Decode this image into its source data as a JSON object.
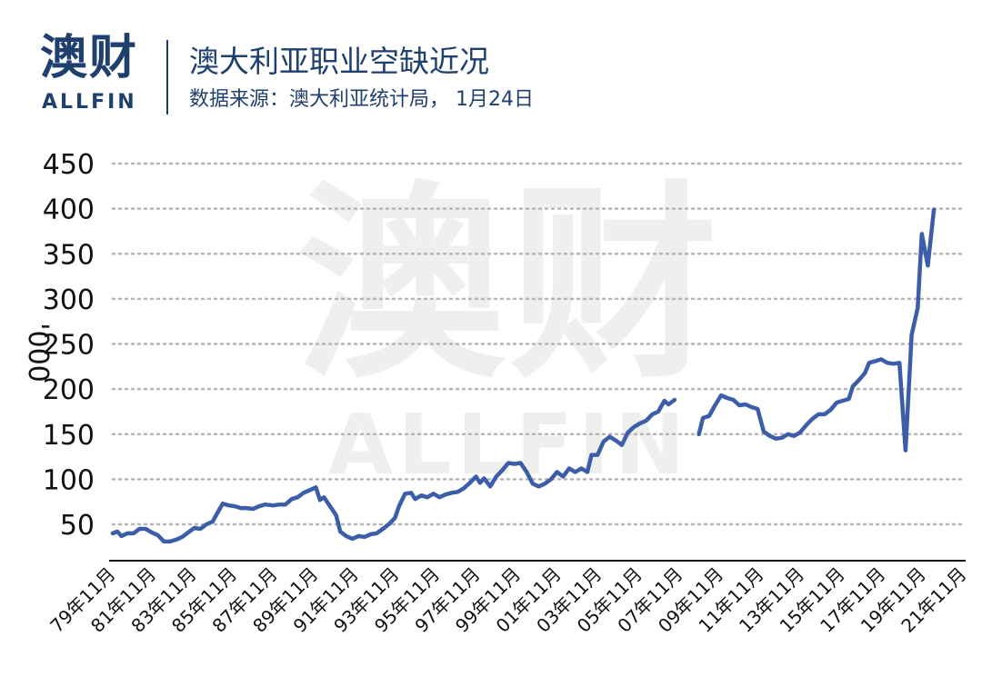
{
  "logo": {
    "cn": "澳财",
    "en": "ALLFIN"
  },
  "watermark": {
    "cn": "澳财",
    "en": "ALLFIN"
  },
  "header": {
    "title": "澳大利亚职业空缺近况",
    "subtitle": "数据来源：澳大利亚统计局， 1月24日"
  },
  "colors": {
    "line": "#3c5ea8",
    "grid": "#b5b5b5",
    "axis": "#111111",
    "brand": "#1f3f6e"
  },
  "chart_data": {
    "type": "line",
    "title": "澳大利亚职业空缺近况",
    "xlabel": "",
    "ylabel": "'000",
    "ylim": [
      0,
      450
    ],
    "yticks": [
      50,
      100,
      150,
      200,
      250,
      300,
      350,
      400,
      450
    ],
    "grid": "horizontal-dotted",
    "x_range": [
      1979.875,
      2021.875
    ],
    "xtick_labels": [
      "79年11月",
      "81年11月",
      "83年11月",
      "85年11月",
      "87年11月",
      "89年11月",
      "91年11月",
      "93年11月",
      "95年11月",
      "97年11月",
      "99年11月",
      "01年11月",
      "03年11月",
      "05年11月",
      "07年11月",
      "09年11月",
      "11年11月",
      "13年11月",
      "15年11月",
      "17年11月",
      "19年11月",
      "21年11月"
    ],
    "xtick_values": [
      1979.875,
      1981.875,
      1983.875,
      1985.875,
      1987.875,
      1989.875,
      1991.875,
      1993.875,
      1995.875,
      1997.875,
      1999.875,
      2001.875,
      2003.875,
      2005.875,
      2007.875,
      2009.875,
      2011.875,
      2013.875,
      2015.875,
      2017.875,
      2019.875,
      2021.875
    ],
    "series": [
      {
        "segments": [
          [
            [
              1979.875,
              40
            ],
            [
              1980.1,
              42
            ],
            [
              1980.3,
              37
            ],
            [
              1980.6,
              40
            ],
            [
              1980.9,
              40
            ],
            [
              1981.2,
              45
            ],
            [
              1981.5,
              45
            ],
            [
              1981.8,
              41
            ],
            [
              1982.1,
              38
            ],
            [
              1982.4,
              31
            ],
            [
              1982.7,
              31
            ],
            [
              1983.0,
              33
            ],
            [
              1983.3,
              36
            ],
            [
              1983.6,
              41
            ],
            [
              1983.9,
              46
            ],
            [
              1984.2,
              45
            ],
            [
              1984.5,
              50
            ],
            [
              1984.8,
              53
            ],
            [
              1985.1,
              65
            ],
            [
              1985.3,
              73
            ],
            [
              1985.6,
              71
            ],
            [
              1985.9,
              70
            ],
            [
              1986.2,
              68
            ],
            [
              1986.5,
              68
            ],
            [
              1986.8,
              67
            ],
            [
              1987.1,
              70
            ],
            [
              1987.4,
              72
            ],
            [
              1987.8,
              71
            ],
            [
              1988.1,
              72
            ],
            [
              1988.4,
              72
            ],
            [
              1988.7,
              78
            ],
            [
              1989.0,
              80
            ],
            [
              1989.3,
              85
            ],
            [
              1989.6,
              88
            ],
            [
              1989.9,
              91
            ],
            [
              1990.1,
              77
            ],
            [
              1990.3,
              80
            ],
            [
              1990.6,
              70
            ],
            [
              1990.9,
              60
            ],
            [
              1991.1,
              42
            ],
            [
              1991.4,
              37
            ],
            [
              1991.7,
              34
            ],
            [
              1992.0,
              37
            ],
            [
              1992.3,
              36
            ],
            [
              1992.6,
              39
            ],
            [
              1992.9,
              40
            ],
            [
              1993.2,
              45
            ],
            [
              1993.5,
              50
            ],
            [
              1993.8,
              57
            ],
            [
              1994.0,
              70
            ],
            [
              1994.3,
              84
            ],
            [
              1994.6,
              85
            ],
            [
              1994.8,
              78
            ],
            [
              1995.1,
              82
            ],
            [
              1995.4,
              80
            ],
            [
              1995.7,
              84
            ],
            [
              1996.0,
              80
            ],
            [
              1996.3,
              83
            ],
            [
              1996.6,
              85
            ],
            [
              1996.9,
              86
            ],
            [
              1997.2,
              90
            ],
            [
              1997.5,
              96
            ],
            [
              1997.8,
              103
            ],
            [
              1998.0,
              96
            ],
            [
              1998.2,
              101
            ],
            [
              1998.5,
              92
            ],
            [
              1998.8,
              103
            ],
            [
              1999.1,
              110
            ],
            [
              1999.4,
              118
            ],
            [
              1999.7,
              117
            ],
            [
              2000.0,
              118
            ],
            [
              2000.3,
              108
            ],
            [
              2000.6,
              95
            ],
            [
              2000.9,
              92
            ],
            [
              2001.2,
              95
            ],
            [
              2001.5,
              100
            ],
            [
              2001.8,
              108
            ],
            [
              2002.1,
              103
            ],
            [
              2002.4,
              112
            ],
            [
              2002.7,
              108
            ],
            [
              2003.0,
              112
            ],
            [
              2003.3,
              108
            ],
            [
              2003.5,
              127
            ],
            [
              2003.8,
              127
            ],
            [
              2004.1,
              142
            ],
            [
              2004.4,
              147
            ],
            [
              2004.7,
              143
            ],
            [
              2005.0,
              138
            ],
            [
              2005.3,
              152
            ],
            [
              2005.6,
              158
            ],
            [
              2005.9,
              162
            ],
            [
              2006.2,
              165
            ],
            [
              2006.5,
              172
            ],
            [
              2006.8,
              175
            ],
            [
              2007.1,
              187
            ],
            [
              2007.3,
              183
            ],
            [
              2007.6,
              188
            ]
          ],
          [
            [
              2008.8,
              150
            ],
            [
              2009.0,
              168
            ],
            [
              2009.3,
              170
            ],
            [
              2009.6,
              182
            ],
            [
              2009.9,
              193
            ],
            [
              2010.2,
              190
            ],
            [
              2010.5,
              188
            ],
            [
              2010.8,
              182
            ],
            [
              2011.1,
              183
            ],
            [
              2011.4,
              180
            ],
            [
              2011.7,
              178
            ],
            [
              2012.0,
              153
            ],
            [
              2012.3,
              148
            ],
            [
              2012.6,
              145
            ],
            [
              2012.9,
              146
            ],
            [
              2013.2,
              150
            ],
            [
              2013.5,
              148
            ],
            [
              2013.8,
              152
            ],
            [
              2014.1,
              160
            ],
            [
              2014.4,
              167
            ],
            [
              2014.7,
              172
            ],
            [
              2015.0,
              172
            ],
            [
              2015.3,
              177
            ],
            [
              2015.6,
              185
            ],
            [
              2015.9,
              187
            ],
            [
              2016.2,
              189
            ],
            [
              2016.4,
              203
            ],
            [
              2016.7,
              210
            ],
            [
              2017.0,
              218
            ],
            [
              2017.2,
              229
            ],
            [
              2017.5,
              231
            ],
            [
              2017.8,
              233
            ],
            [
              2018.1,
              229
            ],
            [
              2018.4,
              228
            ],
            [
              2018.7,
              229
            ],
            [
              2019.0,
              132
            ],
            [
              2019.3,
              260
            ],
            [
              2019.6,
              290
            ],
            [
              2019.8,
              372
            ],
            [
              2020.1,
              337
            ],
            [
              2020.4,
              399
            ]
          ]
        ]
      }
    ]
  }
}
